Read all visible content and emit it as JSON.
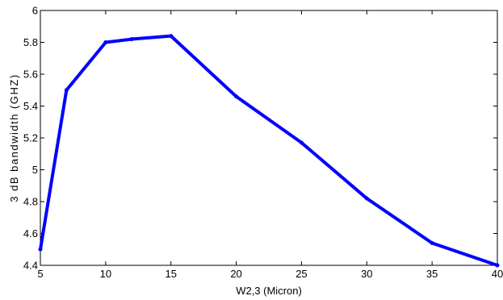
{
  "chart_data": {
    "type": "line",
    "title": "",
    "xlabel": "W2,3 (Micron)",
    "ylabel": "3 dB bandwidth (GHZ)",
    "xlim": [
      5,
      40
    ],
    "ylim": [
      4.4,
      6
    ],
    "xticks": [
      5,
      10,
      15,
      20,
      25,
      30,
      35,
      40
    ],
    "yticks": [
      4.4,
      4.6,
      4.8,
      5,
      5.2,
      5.4,
      5.6,
      5.8,
      6
    ],
    "xtick_labels": [
      "5",
      "10",
      "15",
      "20",
      "25",
      "30",
      "35",
      "40"
    ],
    "ytick_labels": [
      "4.4",
      "4.6",
      "4.8",
      "5",
      "5.2",
      "5.4",
      "5.6",
      "5.8",
      "6"
    ],
    "grid": false,
    "series": [
      {
        "color": "#0000ff",
        "x": [
          5,
          7,
          10,
          12,
          15,
          20,
          25,
          30,
          35,
          40
        ],
        "y": [
          4.5,
          5.5,
          5.8,
          5.82,
          5.84,
          5.46,
          5.17,
          4.82,
          4.54,
          4.4
        ]
      }
    ]
  }
}
